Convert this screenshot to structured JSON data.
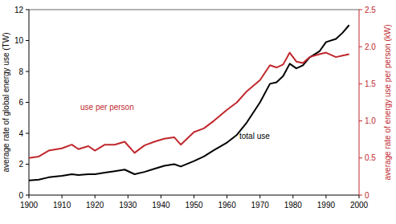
{
  "chart_data": {
    "type": "line",
    "x": [
      1900,
      1903,
      1906,
      1910,
      1913,
      1915,
      1918,
      1920,
      1923,
      1926,
      1929,
      1932,
      1935,
      1938,
      1941,
      1944,
      1946,
      1950,
      1953,
      1956,
      1960,
      1963,
      1966,
      1970,
      1973,
      1975,
      1977,
      1979,
      1981,
      1983,
      1985,
      1988,
      1990,
      1993,
      1995,
      1997
    ],
    "series": [
      {
        "name": "total use",
        "color": "#000000",
        "values": [
          0.95,
          1.0,
          1.15,
          1.25,
          1.35,
          1.3,
          1.35,
          1.35,
          1.45,
          1.55,
          1.65,
          1.35,
          1.5,
          1.7,
          1.9,
          2.0,
          1.85,
          2.2,
          2.5,
          2.9,
          3.4,
          3.9,
          4.7,
          6.0,
          7.2,
          7.3,
          7.7,
          8.5,
          8.2,
          8.4,
          8.9,
          9.3,
          9.9,
          10.1,
          10.5,
          11.0
        ]
      },
      {
        "name": "use per person",
        "color": "#c0282d",
        "axis": "y2",
        "values": [
          0.5,
          0.52,
          0.6,
          0.63,
          0.68,
          0.62,
          0.66,
          0.6,
          0.68,
          0.68,
          0.72,
          0.57,
          0.67,
          0.72,
          0.76,
          0.78,
          0.68,
          0.85,
          0.9,
          1.0,
          1.15,
          1.25,
          1.4,
          1.55,
          1.75,
          1.72,
          1.76,
          1.92,
          1.8,
          1.78,
          1.86,
          1.9,
          1.92,
          1.86,
          1.88,
          1.9
        ]
      }
    ],
    "xlim": [
      1900,
      2000
    ],
    "xticks": [
      1900,
      1910,
      1920,
      1930,
      1940,
      1950,
      1960,
      1970,
      1980,
      1990,
      2000
    ],
    "ylim": [
      0,
      12
    ],
    "yticks": [
      0,
      2,
      4,
      6,
      8,
      10,
      12
    ],
    "y2lim": [
      0,
      2.5
    ],
    "y2ticks": [
      0,
      0.5,
      {
        "value": 1,
        "label": "1.0"
      },
      1.5,
      {
        "value": 2,
        "label": "2.0"
      },
      2.5
    ],
    "y_label": "average rate of global energy use (TW)",
    "y2_label": "average rate of energy use per person (kW)",
    "annotations": [
      {
        "text": "use per person"
      },
      {
        "text": "total use"
      }
    ],
    "grid": false
  }
}
